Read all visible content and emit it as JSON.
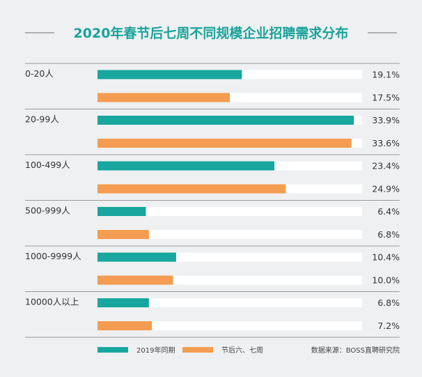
{
  "chart_data": {
    "type": "bar",
    "orientation": "horizontal",
    "title": "2020年春节后七周不同规模企业招聘需求分布",
    "categories": [
      "0-20人",
      "20-99人",
      "100-499人",
      "500-999人",
      "1000-9999人",
      "10000人以上"
    ],
    "series": [
      {
        "name": "2019年同期",
        "color": "#18a69e",
        "values": [
          19.1,
          33.9,
          23.4,
          6.4,
          10.4,
          6.8
        ]
      },
      {
        "name": "节后六、七周",
        "color": "#f49c51",
        "values": [
          17.5,
          33.6,
          24.9,
          6.8,
          10.0,
          7.2
        ]
      }
    ],
    "value_labels": [
      [
        "19.1%",
        "33.9%",
        "23.4%",
        "6.4%",
        "10.4%",
        "6.8%"
      ],
      [
        "17.5%",
        "33.6%",
        "24.9%",
        "6.8%",
        "10.0%",
        "7.2%"
      ]
    ],
    "xlim": [
      0,
      35
    ],
    "legend_position": "bottom-left",
    "source": "数据来源：BOSS直聘研究院",
    "grid": false
  }
}
